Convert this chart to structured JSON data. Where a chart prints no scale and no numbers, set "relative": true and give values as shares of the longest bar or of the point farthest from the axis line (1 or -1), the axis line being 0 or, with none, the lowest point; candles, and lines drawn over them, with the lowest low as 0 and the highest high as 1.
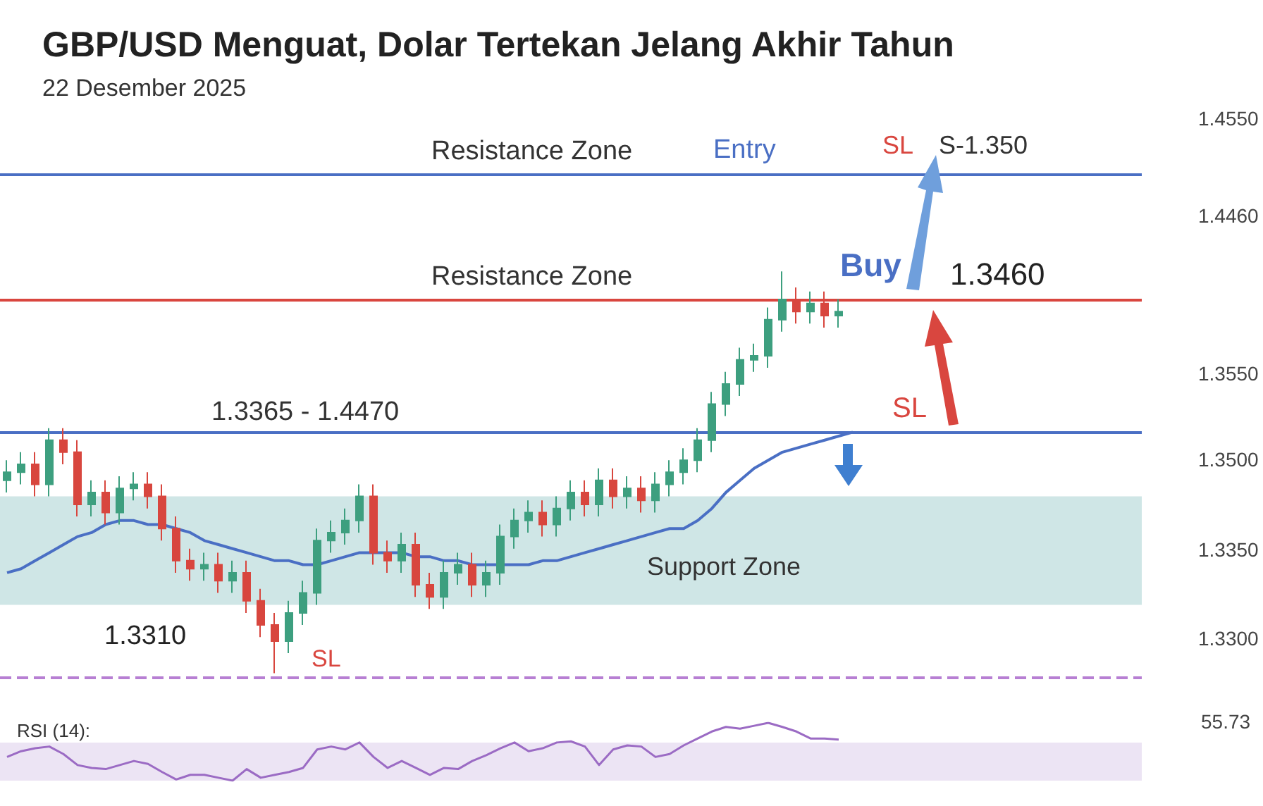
{
  "chart_data": [
    {
      "type": "candlestick",
      "title": "GBP/USD Menguat, Dolar Tertekan Jelang Akhir Tahun",
      "subtitle": "22 Desember 2025",
      "relative": true,
      "categories": [
        null,
        null,
        null,
        null,
        null,
        null,
        null,
        null,
        null,
        null,
        null,
        null,
        null,
        null,
        null,
        null,
        null,
        null,
        null,
        null,
        null,
        null,
        null,
        null,
        null,
        null,
        null,
        null,
        null,
        null,
        null,
        null,
        null,
        null,
        null,
        null,
        null,
        null,
        null,
        null,
        null,
        null,
        null,
        null,
        null,
        null,
        null,
        null,
        null,
        null,
        null,
        null,
        null,
        null,
        null,
        null,
        null,
        null,
        null,
        null,
        null,
        null,
        null,
        null,
        null,
        null,
        null,
        null,
        null,
        null,
        null,
        null,
        null,
        null,
        null,
        null,
        null,
        null,
        null,
        null,
        null
      ],
      "colors": [
        "#3d9f7f",
        "#3d9f7f",
        "#d8463e",
        "#3d9f7f",
        "#d8463e",
        "#d8463e",
        "#3d9f7f",
        "#d8463e",
        "#3d9f7f",
        "#3d9f7f",
        "#d8463e",
        "#d8463e",
        "#d8463e",
        "#d8463e",
        "#3d9f7f",
        "#d8463e",
        "#3d9f7f",
        "#d8463e",
        "#d8463e",
        "#d8463e",
        "#3d9f7f",
        "#3d9f7f",
        "#3d9f7f",
        "#3d9f7f",
        "#3d9f7f",
        "#3d9f7f",
        "#d8463e",
        "#d8463e",
        "#3d9f7f",
        "#d8463e",
        "#d8463e",
        "#3d9f7f",
        "#3d9f7f",
        "#d8463e",
        "#3d9f7f",
        "#3d9f7f",
        "#3d9f7f",
        "#3d9f7f",
        "#d8463e",
        "#3d9f7f",
        "#3d9f7f",
        "#d8463e",
        "#3d9f7f",
        "#d8463e",
        "#3d9f7f",
        "#d8463e",
        "#3d9f7f",
        "#3d9f7f",
        "#3d9f7f",
        "#3d9f7f",
        "#3d9f7f",
        "#3d9f7f",
        "#3d9f7f",
        "#3d9f7f",
        "#3d9f7f",
        "#3d9f7f",
        "#d8463e",
        "#3d9f7f",
        "#d8463e",
        "#3d9f7f",
        null,
        null,
        null,
        null,
        null,
        null,
        null,
        null,
        null,
        null,
        null,
        null,
        null,
        null,
        null,
        null,
        null,
        null,
        null,
        null,
        null
      ],
      "ohlc": [
        [
          0.48,
          0.53,
          0.45,
          0.5
        ],
        [
          0.5,
          0.55,
          0.47,
          0.52
        ],
        [
          0.52,
          0.55,
          0.44,
          0.47
        ],
        [
          0.47,
          0.61,
          0.44,
          0.58
        ],
        [
          0.58,
          0.61,
          0.52,
          0.55
        ],
        [
          0.55,
          0.58,
          0.39,
          0.42
        ],
        [
          0.42,
          0.48,
          0.39,
          0.45
        ],
        [
          0.45,
          0.48,
          0.37,
          0.4
        ],
        [
          0.4,
          0.49,
          0.37,
          0.46
        ],
        [
          0.46,
          0.5,
          0.43,
          0.47
        ],
        [
          0.47,
          0.5,
          0.41,
          0.44
        ],
        [
          0.44,
          0.47,
          0.33,
          0.36
        ],
        [
          0.36,
          0.39,
          0.25,
          0.28
        ],
        [
          0.28,
          0.31,
          0.23,
          0.26
        ],
        [
          0.26,
          0.3,
          0.23,
          0.27
        ],
        [
          0.27,
          0.3,
          0.2,
          0.23
        ],
        [
          0.23,
          0.28,
          0.2,
          0.25
        ],
        [
          0.25,
          0.28,
          0.15,
          0.18
        ],
        [
          0.18,
          0.21,
          0.09,
          0.12
        ],
        [
          0.12,
          0.15,
          0,
          0.08
        ],
        [
          0.08,
          0.18,
          0.05,
          0.15
        ],
        [
          0.15,
          0.23,
          0.12,
          0.2
        ],
        [
          0.2,
          0.36,
          0.17,
          0.33
        ],
        [
          0.33,
          0.38,
          0.3,
          0.35
        ],
        [
          0.35,
          0.41,
          0.32,
          0.38
        ],
        [
          0.38,
          0.47,
          0.35,
          0.44
        ],
        [
          0.44,
          0.47,
          0.27,
          0.3
        ],
        [
          0.3,
          0.33,
          0.25,
          0.28
        ],
        [
          0.28,
          0.35,
          0.25,
          0.32
        ],
        [
          0.32,
          0.35,
          0.19,
          0.22
        ],
        [
          0.22,
          0.25,
          0.16,
          0.19
        ],
        [
          0.19,
          0.28,
          0.16,
          0.25
        ],
        [
          0.25,
          0.3,
          0.22,
          0.27
        ],
        [
          0.27,
          0.3,
          0.19,
          0.22
        ],
        [
          0.22,
          0.28,
          0.19,
          0.25
        ],
        [
          0.25,
          0.37,
          0.22,
          0.34
        ],
        [
          0.34,
          0.41,
          0.31,
          0.38
        ],
        [
          0.38,
          0.43,
          0.35,
          0.4
        ],
        [
          0.4,
          0.43,
          0.34,
          0.37
        ],
        [
          0.37,
          0.44,
          0.34,
          0.41
        ],
        [
          0.41,
          0.48,
          0.38,
          0.45
        ],
        [
          0.45,
          0.48,
          0.39,
          0.42
        ],
        [
          0.42,
          0.51,
          0.39,
          0.48
        ],
        [
          0.48,
          0.51,
          0.41,
          0.44
        ],
        [
          0.44,
          0.49,
          0.41,
          0.46
        ],
        [
          0.46,
          0.49,
          0.4,
          0.43
        ],
        [
          0.43,
          0.5,
          0.4,
          0.47
        ],
        [
          0.47,
          0.53,
          0.44,
          0.5
        ],
        [
          0.5,
          0.56,
          0.47,
          0.53
        ],
        [
          0.53,
          0.61,
          0.5,
          0.58
        ],
        [
          0.58,
          0.7,
          0.55,
          0.67
        ],
        [
          0.67,
          0.75,
          0.64,
          0.72
        ],
        [
          0.72,
          0.81,
          0.69,
          0.78
        ],
        [
          0.78,
          0.82,
          0.75,
          0.79
        ],
        [
          0.79,
          0.91,
          0.76,
          0.88
        ],
        [
          0.88,
          1,
          0.85,
          0.93
        ],
        [
          0.93,
          0.96,
          0.87,
          0.9
        ],
        [
          0.9,
          0.95,
          0.87,
          0.92
        ],
        [
          0.92,
          0.95,
          0.86,
          0.89
        ],
        [
          0.89,
          0.93,
          0.86,
          0.9
        ],
        null,
        null,
        null,
        null,
        null,
        null,
        null,
        null,
        null,
        null,
        null,
        null,
        null,
        null,
        null,
        null,
        null,
        null,
        null,
        null,
        null
      ],
      "series": [
        {
          "type": "line",
          "color": "#4a6fc4",
          "values": [
            0.25,
            0.26,
            0.28,
            0.3,
            0.32,
            0.34,
            0.35,
            0.37,
            0.38,
            0.38,
            0.37,
            0.37,
            0.36,
            0.35,
            0.33,
            0.32,
            0.31,
            0.3,
            0.29,
            0.28,
            0.28,
            0.27,
            0.27,
            0.28,
            0.29,
            0.3,
            0.3,
            0.3,
            0.3,
            0.29,
            0.29,
            0.28,
            0.28,
            0.27,
            0.27,
            0.27,
            0.27,
            0.27,
            0.28,
            0.28,
            0.29,
            0.3,
            0.31,
            0.32,
            0.33,
            0.34,
            0.35,
            0.36,
            0.36,
            0.38,
            0.41,
            0.45,
            0.48,
            0.51,
            0.53,
            0.55,
            0.56,
            0.57,
            0.58,
            0.59,
            0.6,
            null,
            null,
            null,
            null,
            null,
            null,
            null,
            null,
            null,
            null,
            null,
            null,
            null,
            null,
            null,
            null,
            null,
            null,
            null,
            null
          ]
        }
      ],
      "ref_lines": [
        {
          "axis": "y",
          "value": 1.24,
          "label": "Resistance Zone",
          "color": "#4a6fc4"
        },
        {
          "axis": "y",
          "value": 0.93,
          "label": "Resistance Zone",
          "color": "#d9463f"
        },
        {
          "axis": "y",
          "value": 0.6,
          "color": "#4a6fc4"
        },
        {
          "axis": "y",
          "value": -0.01,
          "label": "SL",
          "color": "#b77fd3",
          "line_style": "dashed"
        }
      ],
      "bands": [
        {
          "axis": "y",
          "from": 0.17,
          "to": 0.44,
          "label": "Support Zone",
          "color": "#cfe6e6"
        }
      ],
      "annotations": [
        "Entry",
        "SL",
        "S-1.350",
        "Buy",
        "1.3460",
        "SL",
        "1.3310",
        "1.4550",
        "1.4460",
        "1.3550",
        "1.3500",
        "1.3350",
        "1.3300",
        "1.3365 - 1.4470"
      ]
    },
    {
      "type": "line",
      "title": "RSI (14):",
      "relative": true,
      "categories": [
        null,
        null,
        null,
        null,
        null,
        null,
        null,
        null,
        null,
        null,
        null,
        null,
        null,
        null,
        null,
        null,
        null,
        null,
        null,
        null,
        null,
        null,
        null,
        null,
        null,
        null,
        null,
        null,
        null,
        null,
        null,
        null,
        null,
        null,
        null,
        null,
        null,
        null,
        null,
        null,
        null,
        null,
        null,
        null,
        null,
        null,
        null,
        null,
        null,
        null,
        null,
        null,
        null,
        null,
        null,
        null,
        null,
        null,
        null,
        null,
        null,
        null,
        null,
        null,
        null,
        null,
        null,
        null,
        null,
        null,
        null,
        null,
        null,
        null,
        null,
        null,
        null,
        null,
        null,
        null,
        null
      ],
      "series": [
        {
          "color": "#9b6bc4",
          "values": [
            0.41,
            0.51,
            0.56,
            0.59,
            0.46,
            0.27,
            0.22,
            0.2,
            0.27,
            0.34,
            0.29,
            0.15,
            0.02,
            0.1,
            0.1,
            0.05,
            0,
            0.2,
            0.05,
            0.1,
            0.15,
            0.22,
            0.54,
            0.59,
            0.54,
            0.66,
            0.41,
            0.22,
            0.34,
            0.22,
            0.1,
            0.22,
            0.2,
            0.34,
            0.44,
            0.56,
            0.66,
            0.51,
            0.56,
            0.66,
            0.68,
            0.59,
            0.27,
            0.54,
            0.61,
            0.59,
            0.41,
            0.46,
            0.61,
            0.73,
            0.85,
            0.93,
            0.9,
            0.95,
            1,
            0.93,
            0.85,
            0.73,
            0.73,
            0.71,
            null,
            null,
            null,
            null,
            null,
            null,
            null,
            null,
            null,
            null,
            null,
            null,
            null,
            null,
            null,
            null,
            null,
            null,
            null,
            null,
            null
          ]
        }
      ],
      "bands": [
        {
          "axis": "y",
          "from": 0,
          "to": 0.66,
          "color": "#ece4f4"
        }
      ],
      "annotations": [
        "55.73"
      ]
    }
  ]
}
